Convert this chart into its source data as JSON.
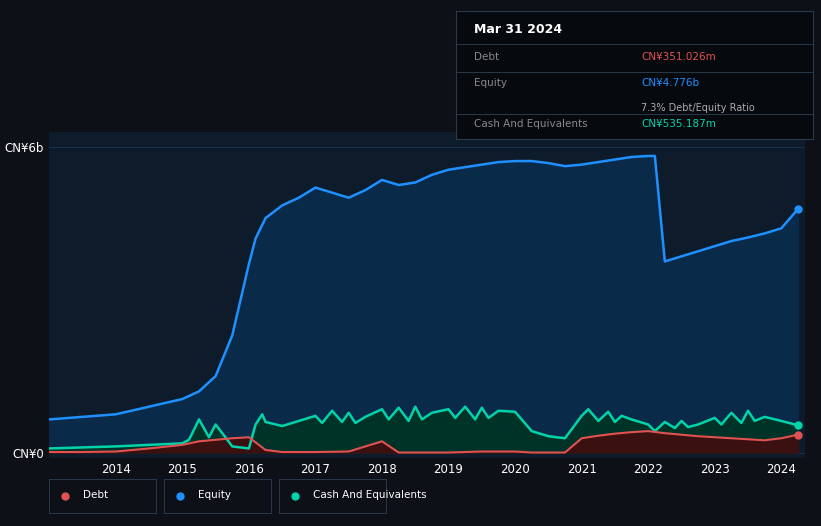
{
  "bg_color": "#0d1117",
  "plot_bg_color": "#0d1b2a",
  "title_box": {
    "date": "Mar 31 2024",
    "debt_label": "Debt",
    "debt_value": "CN¥351.026m",
    "equity_label": "Equity",
    "equity_value": "CN¥4.776b",
    "ratio_text": "7.3% Debt/Equity Ratio",
    "cash_label": "Cash And Equivalents",
    "cash_value": "CN¥535.187m"
  },
  "ylabel_top": "CN¥6b",
  "ylabel_bottom": "CN¥0",
  "x_ticks": [
    "2014",
    "2015",
    "2016",
    "2017",
    "2018",
    "2019",
    "2020",
    "2021",
    "2022",
    "2023",
    "2024"
  ],
  "equity_color": "#1e90ff",
  "equity_fill": "#0a2a4a",
  "debt_color": "#e05252",
  "debt_fill": "#3a1010",
  "cash_color": "#00d4aa",
  "cash_fill": "#003328",
  "legend_items": [
    "Debt",
    "Equity",
    "Cash And Equivalents"
  ],
  "legend_colors": [
    "#e05252",
    "#1e90ff",
    "#00d4aa"
  ],
  "grid_color": "#1a3050",
  "equity_data_x": [
    2013.0,
    2013.5,
    2014.0,
    2014.5,
    2015.0,
    2015.25,
    2015.5,
    2015.75,
    2016.0,
    2016.1,
    2016.25,
    2016.5,
    2016.75,
    2017.0,
    2017.25,
    2017.5,
    2017.75,
    2018.0,
    2018.25,
    2018.5,
    2018.75,
    2019.0,
    2019.25,
    2019.5,
    2019.75,
    2020.0,
    2020.25,
    2020.5,
    2020.75,
    2021.0,
    2021.25,
    2021.5,
    2021.75,
    2022.0,
    2022.1,
    2022.25,
    2022.5,
    2022.75,
    2023.0,
    2023.25,
    2023.5,
    2023.75,
    2024.0,
    2024.25
  ],
  "equity_data_y": [
    0.65,
    0.7,
    0.75,
    0.9,
    1.05,
    1.2,
    1.5,
    2.3,
    3.7,
    4.2,
    4.6,
    4.85,
    5.0,
    5.2,
    5.1,
    5.0,
    5.15,
    5.35,
    5.25,
    5.3,
    5.45,
    5.55,
    5.6,
    5.65,
    5.7,
    5.72,
    5.72,
    5.68,
    5.62,
    5.65,
    5.7,
    5.75,
    5.8,
    5.82,
    5.82,
    3.75,
    3.85,
    3.95,
    4.05,
    4.15,
    4.22,
    4.3,
    4.4,
    4.776
  ],
  "debt_data_x": [
    2013.0,
    2013.5,
    2014.0,
    2014.5,
    2015.0,
    2015.25,
    2015.5,
    2015.75,
    2016.0,
    2016.25,
    2016.5,
    2017.0,
    2017.5,
    2018.0,
    2018.25,
    2018.5,
    2018.75,
    2019.0,
    2019.5,
    2020.0,
    2020.25,
    2020.5,
    2020.75,
    2021.0,
    2021.25,
    2021.5,
    2021.75,
    2022.0,
    2022.25,
    2022.5,
    2022.75,
    2023.0,
    2023.25,
    2023.5,
    2023.75,
    2024.0,
    2024.25
  ],
  "debt_data_y": [
    0.01,
    0.01,
    0.02,
    0.08,
    0.15,
    0.22,
    0.25,
    0.28,
    0.3,
    0.05,
    0.01,
    0.01,
    0.02,
    0.22,
    0.0,
    0.0,
    0.0,
    0.0,
    0.02,
    0.02,
    0.0,
    0.0,
    0.0,
    0.28,
    0.33,
    0.37,
    0.4,
    0.42,
    0.38,
    0.35,
    0.32,
    0.3,
    0.28,
    0.26,
    0.24,
    0.28,
    0.351
  ],
  "cash_data_x": [
    2013.0,
    2013.5,
    2014.0,
    2014.5,
    2015.0,
    2015.1,
    2015.25,
    2015.4,
    2015.5,
    2015.6,
    2015.75,
    2016.0,
    2016.1,
    2016.2,
    2016.25,
    2016.5,
    2016.75,
    2017.0,
    2017.1,
    2017.25,
    2017.4,
    2017.5,
    2017.6,
    2017.75,
    2018.0,
    2018.1,
    2018.25,
    2018.4,
    2018.5,
    2018.6,
    2018.75,
    2019.0,
    2019.1,
    2019.25,
    2019.4,
    2019.5,
    2019.6,
    2019.75,
    2020.0,
    2020.25,
    2020.5,
    2020.75,
    2021.0,
    2021.1,
    2021.25,
    2021.4,
    2021.5,
    2021.6,
    2021.75,
    2022.0,
    2022.1,
    2022.25,
    2022.4,
    2022.5,
    2022.6,
    2022.75,
    2023.0,
    2023.1,
    2023.25,
    2023.4,
    2023.5,
    2023.6,
    2023.75,
    2024.0,
    2024.25
  ],
  "cash_data_y": [
    0.08,
    0.1,
    0.12,
    0.15,
    0.18,
    0.25,
    0.65,
    0.3,
    0.55,
    0.38,
    0.12,
    0.08,
    0.55,
    0.75,
    0.6,
    0.52,
    0.62,
    0.72,
    0.58,
    0.82,
    0.6,
    0.78,
    0.58,
    0.7,
    0.85,
    0.65,
    0.88,
    0.62,
    0.9,
    0.65,
    0.78,
    0.85,
    0.68,
    0.9,
    0.65,
    0.88,
    0.68,
    0.82,
    0.8,
    0.42,
    0.32,
    0.28,
    0.72,
    0.85,
    0.62,
    0.8,
    0.6,
    0.72,
    0.65,
    0.55,
    0.42,
    0.6,
    0.48,
    0.62,
    0.5,
    0.55,
    0.68,
    0.55,
    0.78,
    0.58,
    0.82,
    0.62,
    0.7,
    0.62,
    0.535
  ]
}
